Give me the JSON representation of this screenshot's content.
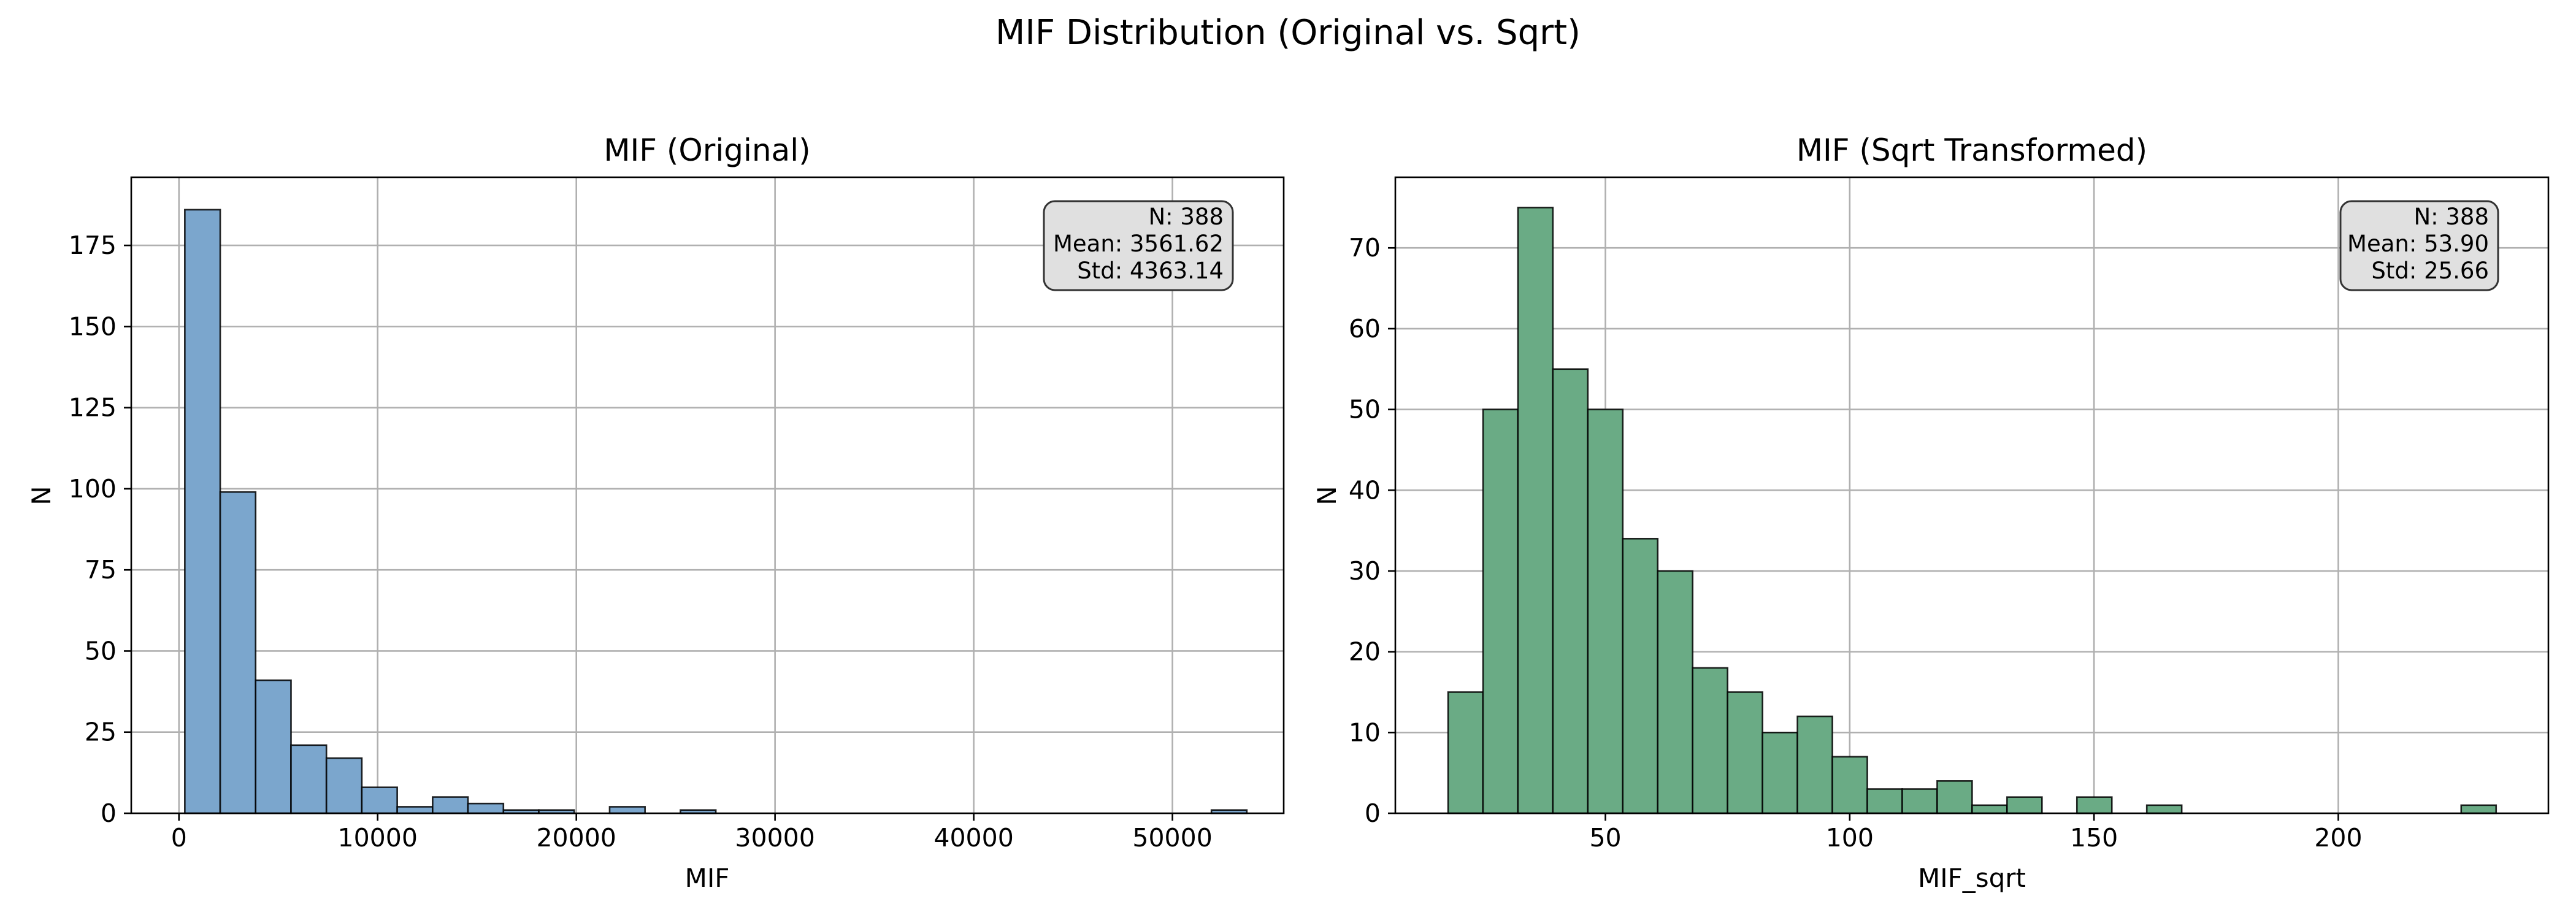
{
  "figure": {
    "title": "MIF Distribution (Original vs. Sqrt)"
  },
  "chart_data": [
    {
      "type": "bar",
      "subtype": "histogram",
      "title": "MIF (Original)",
      "xlabel": "MIF",
      "ylabel": "N",
      "color": "#7ba6cd",
      "grid": true,
      "xlim": [
        -2400,
        55600
      ],
      "ylim": [
        0,
        196
      ],
      "xticks": [
        0,
        10000,
        20000,
        30000,
        40000,
        50000
      ],
      "yticks": [
        0,
        25,
        50,
        75,
        100,
        125,
        150,
        175
      ],
      "bin_edges": [
        296,
        2077.6,
        3859.2,
        5640.8,
        7422.4,
        9204,
        10985.6,
        12767.2,
        14548.8,
        16330.4,
        18112,
        19893.6,
        21675.2,
        23456.8,
        25238.4,
        27020,
        28801.6,
        30583.2,
        32364.8,
        34146.4,
        35928,
        37709.6,
        39491.2,
        41272.8,
        43054.4,
        44836,
        46617.6,
        48399.2,
        50180.8,
        51962.4,
        53744
      ],
      "counts": [
        186,
        99,
        41,
        21,
        17,
        8,
        2,
        5,
        3,
        1,
        1,
        0,
        2,
        0,
        1,
        0,
        0,
        0,
        0,
        0,
        0,
        0,
        0,
        0,
        0,
        0,
        0,
        0,
        0,
        1
      ],
      "stats_box": {
        "n": "N: 388",
        "mean": "Mean: 3561.62",
        "std": "Std: 4363.14",
        "position": "top-right"
      }
    },
    {
      "type": "bar",
      "subtype": "histogram",
      "title": "MIF (Sqrt Transformed)",
      "xlabel": "MIF_sqrt",
      "ylabel": "N",
      "color": "#6aab85",
      "grid": true,
      "xlim": [
        7,
        243
      ],
      "ylim": [
        0,
        78.75
      ],
      "xticks": [
        50,
        100,
        150,
        200
      ],
      "yticks": [
        0,
        10,
        20,
        30,
        40,
        50,
        60,
        70
      ],
      "bin_edges": [
        17.8,
        24.95,
        32.1,
        39.25,
        46.4,
        53.55,
        60.7,
        67.85,
        75.0,
        82.15,
        89.3,
        96.45,
        103.6,
        110.75,
        117.9,
        125.05,
        132.2,
        139.35,
        146.5,
        153.65,
        160.8,
        167.95,
        175.1,
        182.25,
        189.4,
        196.55,
        203.7,
        210.85,
        218.0,
        225.15,
        232.3
      ],
      "counts": [
        15,
        50,
        75,
        55,
        50,
        34,
        30,
        18,
        15,
        10,
        12,
        7,
        3,
        3,
        4,
        1,
        2,
        0,
        2,
        0,
        1,
        0,
        0,
        0,
        0,
        0,
        0,
        0,
        0,
        1
      ],
      "stats_box": {
        "n": "N: 388",
        "mean": "Mean: 53.90",
        "std": "Std: 25.66",
        "position": "top-right"
      }
    }
  ]
}
